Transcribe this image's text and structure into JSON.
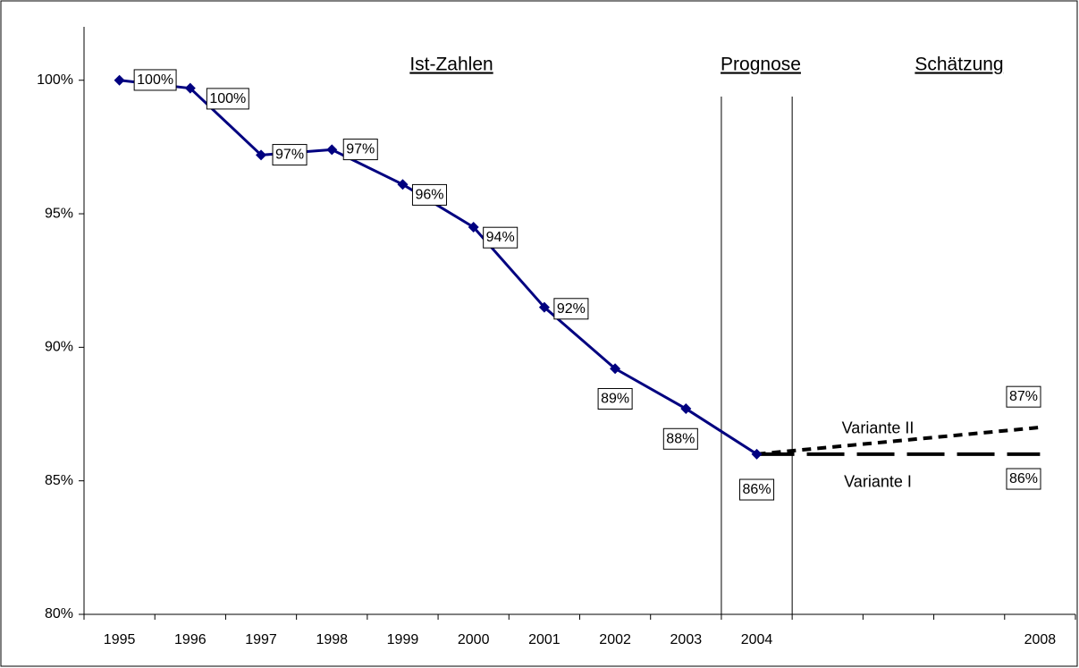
{
  "chart_data": {
    "type": "line",
    "categories": [
      "1995",
      "1996",
      "1997",
      "1998",
      "1999",
      "2000",
      "2001",
      "2002",
      "2003",
      "2004",
      null,
      null,
      null,
      "2008"
    ],
    "series": [
      {
        "name": "Ist-Zahlen",
        "color": "#000080",
        "values": [
          100,
          99.7,
          97.2,
          97.4,
          96.1,
          94.5,
          91.5,
          89.2,
          87.7,
          86.0,
          null,
          null,
          null,
          null
        ],
        "value_labels": [
          "100%",
          "100%",
          "97%",
          "97%",
          "96%",
          "94%",
          "92%",
          "89%",
          "88%",
          "86%",
          null,
          null,
          null,
          null
        ]
      },
      {
        "name": "Variante II",
        "color": "#000000",
        "values": [
          null,
          null,
          null,
          null,
          null,
          null,
          null,
          null,
          null,
          86.0,
          null,
          null,
          null,
          87.0
        ],
        "value_labels": [
          null,
          null,
          null,
          null,
          null,
          null,
          null,
          null,
          null,
          null,
          null,
          null,
          null,
          "87%"
        ]
      },
      {
        "name": "Variante I",
        "color": "#000000",
        "values": [
          null,
          null,
          null,
          null,
          null,
          null,
          null,
          null,
          null,
          86.0,
          null,
          null,
          null,
          86.0
        ],
        "value_labels": [
          null,
          null,
          null,
          null,
          null,
          null,
          null,
          null,
          null,
          null,
          null,
          null,
          null,
          "86%"
        ]
      }
    ],
    "sections": [
      "Ist-Zahlen",
      "Prognose",
      "Schätzung"
    ],
    "ylim": [
      80,
      102
    ],
    "yticks": [
      {
        "value": 80,
        "label": "80%"
      },
      {
        "value": 85,
        "label": "85%"
      },
      {
        "value": 90,
        "label": "90%"
      },
      {
        "value": 95,
        "label": "95%"
      },
      {
        "value": 100,
        "label": "100%"
      }
    ],
    "grid": false
  }
}
